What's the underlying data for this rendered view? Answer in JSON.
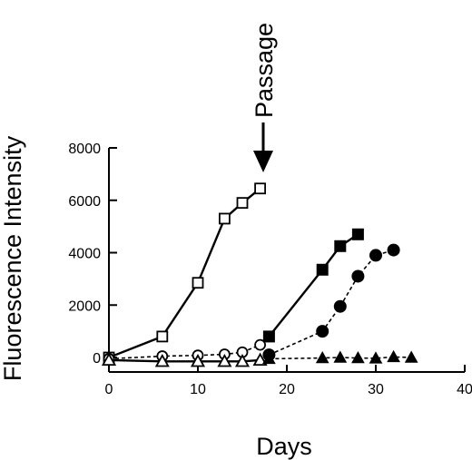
{
  "chart_data": {
    "type": "line",
    "xlabel": "Days",
    "ylabel": "Fluorescence Intensity",
    "xlim": [
      0,
      40
    ],
    "ylim": [
      0,
      8000
    ],
    "xticks": [
      0,
      10,
      20,
      30,
      40
    ],
    "yticks": [
      0,
      2000,
      4000,
      6000,
      8000
    ],
    "grid": false,
    "legend": "none",
    "annotation": {
      "text": "Passage",
      "x": 17.5,
      "y": 7000,
      "arrow": "down"
    },
    "series": [
      {
        "marker": "square",
        "fill": "open",
        "line": "solid",
        "x": [
          0,
          6,
          10,
          13,
          15,
          17
        ],
        "y": [
          0,
          800,
          2850,
          5300,
          5900,
          6450
        ]
      },
      {
        "marker": "circle",
        "fill": "open",
        "line": "dashed",
        "x": [
          0,
          6,
          10,
          13,
          15,
          17
        ],
        "y": [
          -50,
          50,
          80,
          120,
          200,
          480
        ]
      },
      {
        "marker": "triangle",
        "fill": "open",
        "line": "solid",
        "x": [
          0,
          6,
          10,
          13,
          15,
          17
        ],
        "y": [
          -100,
          -150,
          -150,
          -150,
          -150,
          -100
        ]
      },
      {
        "marker": "square",
        "fill": "filled",
        "line": "solid",
        "x": [
          18,
          24,
          26,
          28
        ],
        "y": [
          800,
          3350,
          4250,
          4700
        ]
      },
      {
        "marker": "circle",
        "fill": "filled",
        "line": "dashed",
        "x": [
          18,
          24,
          26,
          28,
          30,
          32
        ],
        "y": [
          100,
          1000,
          1950,
          3100,
          3900,
          4100
        ]
      },
      {
        "marker": "triangle",
        "fill": "filled",
        "line": "dashed",
        "x": [
          18,
          24,
          26,
          28,
          30,
          32,
          34
        ],
        "y": [
          -50,
          -20,
          0,
          -20,
          -30,
          20,
          0
        ]
      }
    ]
  }
}
